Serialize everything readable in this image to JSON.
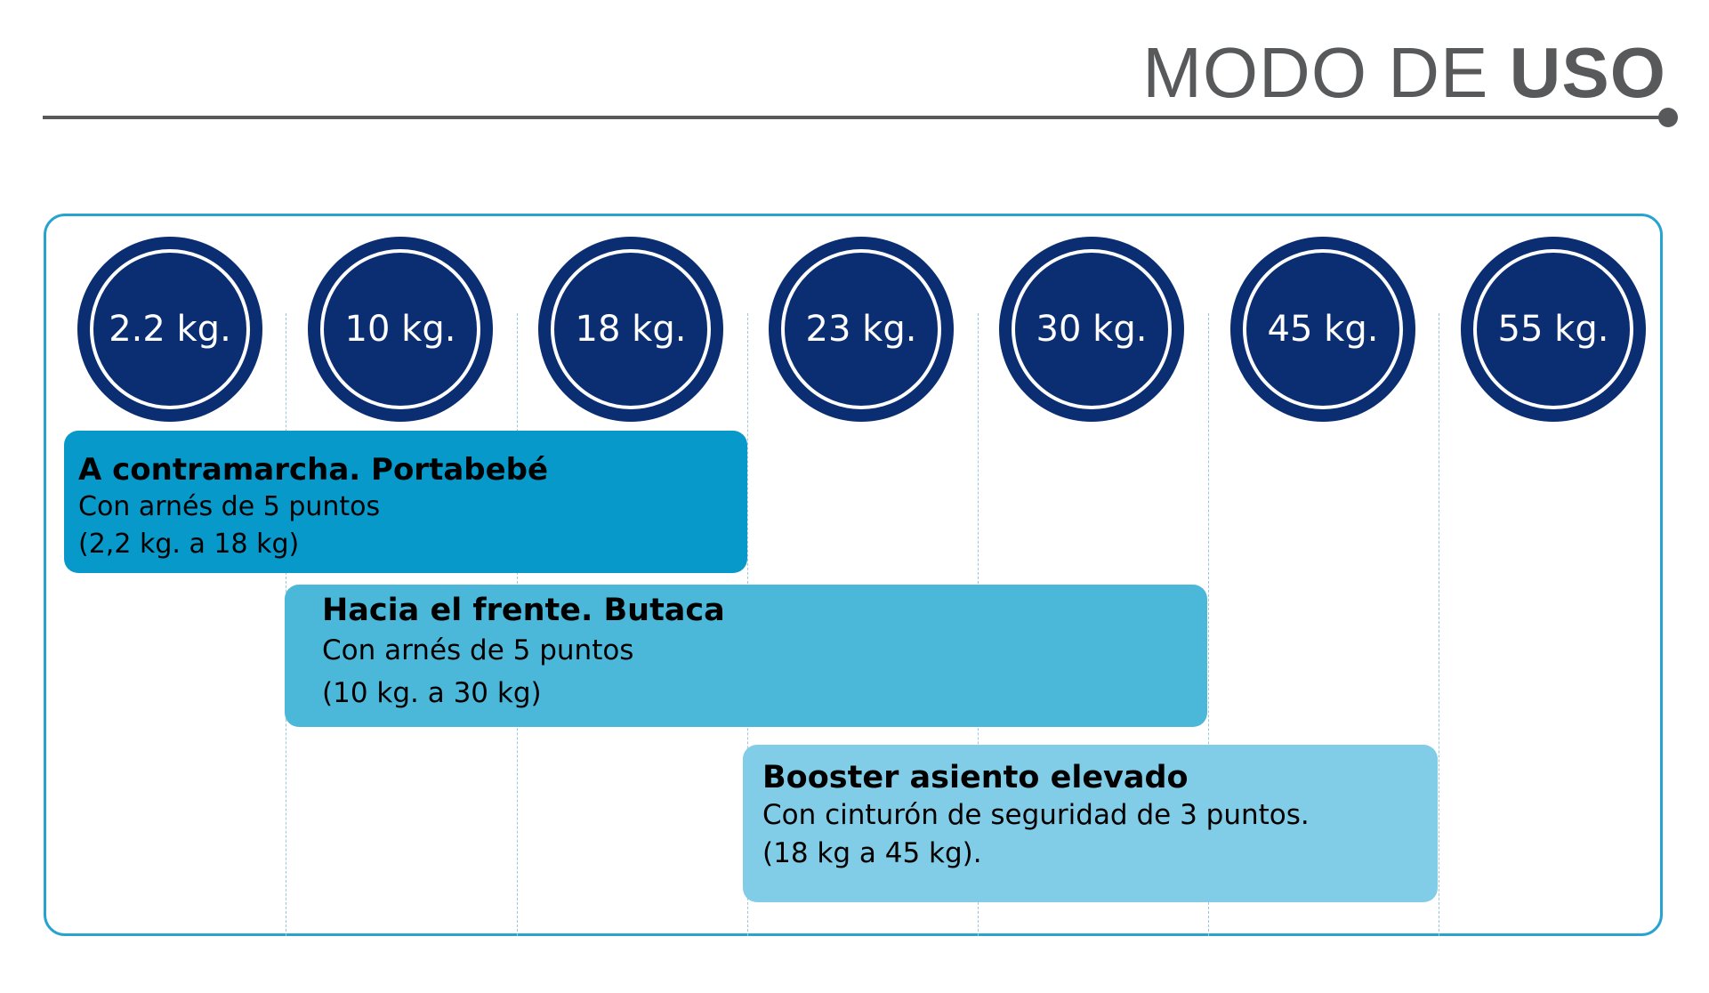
{
  "header": {
    "title_regular": "MODO DE ",
    "title_bold": "USO"
  },
  "weights": [
    "2.2 kg.",
    "10 kg.",
    "18 kg.",
    "23 kg.",
    "30 kg.",
    "45 kg.",
    "55 kg."
  ],
  "bands": [
    {
      "title": "A contramarcha. Portabebé",
      "line1": "Con arnés de 5 puntos",
      "line2": "(2,2 kg. a 18 kg)"
    },
    {
      "title": "Hacia el frente. Butaca",
      "line1": "Con arnés de 5 puntos",
      "line2": "(10 kg. a 30 kg)"
    },
    {
      "title": "Booster asiento elevado",
      "line1": "Con cinturón de seguridad de 3 puntos.",
      "line2": "(18 kg a 45 kg)."
    }
  ],
  "colors": {
    "circle": "#0b2d72",
    "frame": "#27a3d0",
    "band_rear_facing": "#0799c9",
    "band_forward": "#4bb8da",
    "band_booster": "#81cce6",
    "header_text": "#58595b"
  }
}
